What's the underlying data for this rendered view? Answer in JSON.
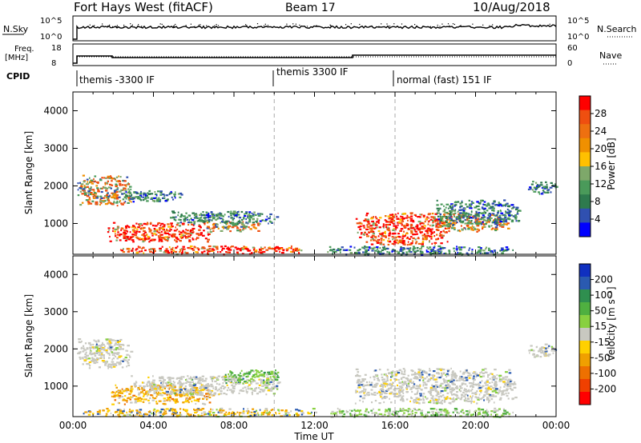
{
  "header": {
    "radar": "Fort Hays West (fitACF)",
    "beam": "Beam 17",
    "date": "10/Aug/2018"
  },
  "status": {
    "nsky_label": "N.Sky",
    "nsky_ticks": [
      "10^5",
      "10^0"
    ],
    "nsearch_label": "N.Search",
    "nsearch_ticks": [
      "10^5",
      "10^0"
    ],
    "freq_label": [
      "Freq.",
      "[MHz]"
    ],
    "freq_ticks": [
      "18",
      "8"
    ],
    "nave_label": "Nave",
    "nave_ticks": [
      "60",
      "0"
    ],
    "cpid_label": "CPID",
    "programs": [
      {
        "name": "themis -3300 IF",
        "start": 0.0
      },
      {
        "name": "themis 3300 IF",
        "start": 10.0
      },
      {
        "name": "normal (fast) 151 IF",
        "start": 16.0
      }
    ]
  },
  "chart_data": [
    {
      "type": "heatmap",
      "title": "Power",
      "ylabel": "Slant Range [km]",
      "xlabel": "Time UT",
      "xlim": [
        0,
        24
      ],
      "ylim": [
        180,
        4500
      ],
      "x_ticks": [
        "00:00",
        "04:00",
        "08:00",
        "12:00",
        "16:00",
        "20:00",
        "00:00"
      ],
      "y_ticks": [
        1000,
        2000,
        3000,
        4000
      ],
      "colorbar": {
        "label": "Power [dB]",
        "ticks": [
          "4",
          "8",
          "12",
          "16",
          "20",
          "24",
          "28"
        ],
        "colors": [
          "#0000ff",
          "#3050b0",
          "#2e7a4e",
          "#4a9a5a",
          "#7ea86a",
          "#ffc000",
          "#f09000",
          "#ee7010",
          "#ef4f10",
          "#ff0000"
        ]
      },
      "echo_regions": [
        {
          "t": [
            1.7,
            6.9
          ],
          "r": [
            530,
            1050
          ],
          "level": "strong"
        },
        {
          "t": [
            6.5,
            9.3
          ],
          "r": [
            800,
            1080
          ],
          "level": "moderate"
        },
        {
          "t": [
            0.2,
            2.9
          ],
          "r": [
            1500,
            2300
          ],
          "level": "moderate"
        },
        {
          "t": [
            2.5,
            5.5
          ],
          "r": [
            1600,
            1900
          ],
          "level": "weak"
        },
        {
          "t": [
            2.3,
            11.4
          ],
          "r": [
            200,
            420
          ],
          "level": "strong"
        },
        {
          "t": [
            4.8,
            10.2
          ],
          "r": [
            1000,
            1350
          ],
          "level": "weak"
        },
        {
          "t": [
            14.0,
            18.6
          ],
          "r": [
            450,
            1300
          ],
          "level": "strong"
        },
        {
          "t": [
            17.8,
            21.6
          ],
          "r": [
            800,
            1300
          ],
          "level": "moderate"
        },
        {
          "t": [
            18.0,
            22.2
          ],
          "r": [
            1000,
            1650
          ],
          "level": "weak"
        },
        {
          "t": [
            22.6,
            24.0
          ],
          "r": [
            1800,
            2150
          ],
          "level": "weak"
        },
        {
          "t": [
            12.6,
            21.9
          ],
          "r": [
            190,
            420
          ],
          "level": "weak"
        }
      ]
    },
    {
      "type": "heatmap",
      "title": "Velocity",
      "ylabel": "Slant Range [km]",
      "xlabel": "Time UT",
      "xlim": [
        0,
        24
      ],
      "ylim": [
        180,
        4500
      ],
      "x_ticks": [
        "00:00",
        "04:00",
        "08:00",
        "12:00",
        "16:00",
        "20:00",
        "00:00"
      ],
      "y_ticks": [
        1000,
        2000,
        3000,
        4000
      ],
      "colorbar": {
        "label": "Velocity [m s⁻¹]",
        "ticks": [
          "200",
          "100",
          "50",
          "15",
          "-15",
          "-50",
          "-100",
          "-200"
        ],
        "colors": [
          "#1030c0",
          "#2a5ab0",
          "#2f8f4f",
          "#4fb040",
          "#88d040",
          "#c8c8c0",
          "#ffd000",
          "#f0a000",
          "#ee7000",
          "#f04000",
          "#ff0000"
        ]
      },
      "echo_regions": [
        {
          "t": [
            1.8,
            6.9
          ],
          "r": [
            530,
            1050
          ],
          "level": "negative-weak"
        },
        {
          "t": [
            2.8,
            10.2
          ],
          "r": [
            780,
            1300
          ],
          "level": "near-zero"
        },
        {
          "t": [
            7.5,
            10.2
          ],
          "r": [
            1080,
            1450
          ],
          "level": "positive"
        },
        {
          "t": [
            0.2,
            2.9
          ],
          "r": [
            1500,
            2300
          ],
          "level": "near-zero"
        },
        {
          "t": [
            0.2,
            12.0
          ],
          "r": [
            200,
            420
          ],
          "level": "mixed"
        },
        {
          "t": [
            14.0,
            22.0
          ],
          "r": [
            550,
            1500
          ],
          "level": "near-zero"
        },
        {
          "t": [
            22.6,
            24.0
          ],
          "r": [
            1800,
            2150
          ],
          "level": "near-zero"
        },
        {
          "t": [
            12.6,
            21.9
          ],
          "r": [
            190,
            420
          ],
          "level": "positive-weak"
        }
      ]
    }
  ]
}
